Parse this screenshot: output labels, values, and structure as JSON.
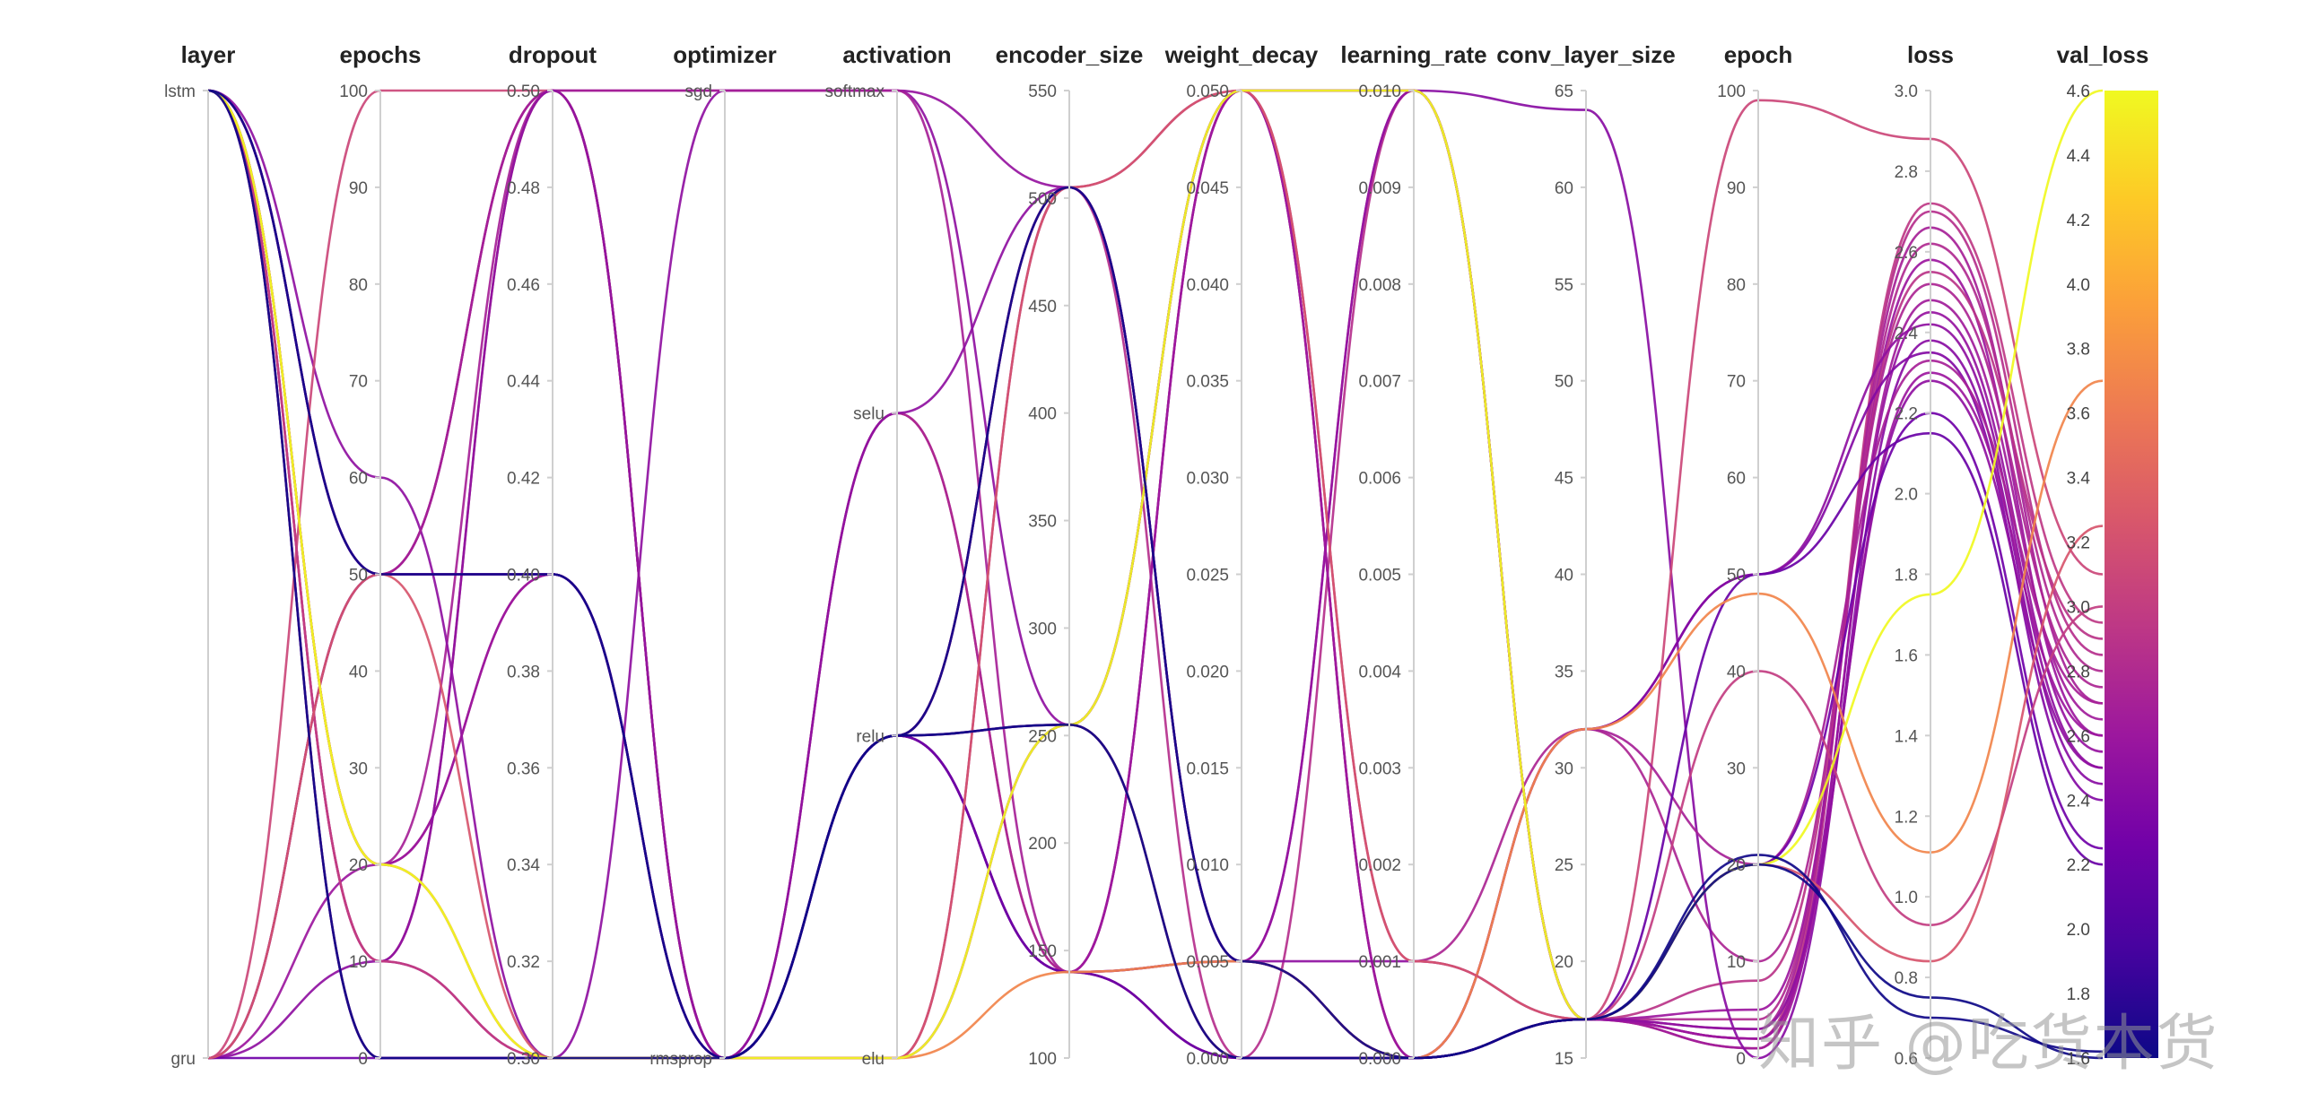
{
  "chart_data": {
    "type": "parallel_coordinates",
    "axes": [
      {
        "name": "layer",
        "kind": "categorical",
        "categories": [
          "lstm",
          "gru"
        ]
      },
      {
        "name": "epochs",
        "kind": "numeric",
        "range": [
          0,
          100
        ],
        "ticks": [
          0,
          10,
          20,
          30,
          40,
          50,
          60,
          70,
          80,
          90,
          100
        ]
      },
      {
        "name": "dropout",
        "kind": "numeric",
        "range": [
          0.3,
          0.5
        ],
        "ticks": [
          "0.30",
          "0.32",
          "0.34",
          "0.36",
          "0.38",
          "0.40",
          "0.42",
          "0.44",
          "0.46",
          "0.48",
          "0.50"
        ]
      },
      {
        "name": "optimizer",
        "kind": "categorical",
        "categories": [
          "sgd",
          "rmsprop"
        ]
      },
      {
        "name": "activation",
        "kind": "categorical",
        "categories": [
          "softmax",
          "selu",
          "relu",
          "elu"
        ]
      },
      {
        "name": "encoder_size",
        "kind": "numeric",
        "range": [
          100,
          550
        ],
        "ticks": [
          100,
          150,
          200,
          250,
          300,
          350,
          400,
          450,
          500,
          550
        ]
      },
      {
        "name": "weight_decay",
        "kind": "numeric",
        "range": [
          0,
          0.05
        ],
        "ticks": [
          "0.000",
          "0.005",
          "0.010",
          "0.015",
          "0.020",
          "0.025",
          "0.030",
          "0.035",
          "0.040",
          "0.045",
          "0.050"
        ]
      },
      {
        "name": "learning_rate",
        "kind": "numeric",
        "range": [
          0,
          0.01
        ],
        "ticks": [
          "0.000",
          "0.001",
          "0.002",
          "0.003",
          "0.004",
          "0.005",
          "0.006",
          "0.007",
          "0.008",
          "0.009",
          "0.010"
        ]
      },
      {
        "name": "conv_layer_size",
        "kind": "numeric",
        "range": [
          15,
          65
        ],
        "ticks": [
          15,
          20,
          25,
          30,
          35,
          40,
          45,
          50,
          55,
          60,
          65
        ]
      },
      {
        "name": "epoch",
        "kind": "numeric",
        "range": [
          0,
          100
        ],
        "ticks": [
          0,
          10,
          20,
          30,
          40,
          50,
          60,
          70,
          80,
          90,
          100
        ]
      },
      {
        "name": "loss",
        "kind": "numeric",
        "range": [
          0.6,
          3.0
        ],
        "ticks": [
          "0.6",
          "0.8",
          "1.0",
          "1.2",
          "1.4",
          "1.6",
          "1.8",
          "2.0",
          "2.2",
          "2.4",
          "2.6",
          "2.8",
          "3.0"
        ]
      },
      {
        "name": "val_loss",
        "kind": "numeric",
        "range": [
          1.6,
          4.6
        ],
        "ticks": [
          "1.6",
          "1.8",
          "2.0",
          "2.2",
          "2.4",
          "2.6",
          "2.8",
          "3.0",
          "3.2",
          "3.4",
          "3.6",
          "3.8",
          "4.0",
          "4.2",
          "4.4",
          "4.6"
        ]
      }
    ],
    "colorscale": {
      "variable": "val_loss",
      "stops": [
        "#0d0887",
        "#46039f",
        "#7201a8",
        "#9c179e",
        "#bd3786",
        "#d8576b",
        "#ed7953",
        "#fb9f3a",
        "#fdca26",
        "#f0f921"
      ]
    },
    "runs": [
      {
        "values": [
          "lstm",
          50,
          0.5,
          "rmsprop",
          "relu",
          505,
          0.005,
          0.0,
          17,
          2,
          2.72,
          2.95
        ]
      },
      {
        "values": [
          "lstm",
          50,
          0.4,
          "rmsprop",
          "relu",
          505,
          0.0,
          0.01,
          17,
          1,
          2.7,
          2.85
        ]
      },
      {
        "values": [
          "lstm",
          20,
          0.5,
          "rmsprop",
          "relu",
          505,
          0.05,
          0.0,
          17,
          3,
          2.66,
          2.7
        ]
      },
      {
        "values": [
          "lstm",
          20,
          0.4,
          "rmsprop",
          "relu",
          140,
          0.05,
          0.0,
          17,
          4,
          2.62,
          2.8
        ]
      },
      {
        "values": [
          "lstm",
          10,
          0.3,
          "rmsprop",
          "relu",
          140,
          0.005,
          0.01,
          17,
          5,
          2.58,
          2.6
        ]
      },
      {
        "values": [
          "lstm",
          10,
          0.5,
          "rmsprop",
          "selu",
          140,
          0.0,
          0.0,
          17,
          8,
          2.55,
          2.9
        ]
      },
      {
        "values": [
          "lstm",
          0,
          0.3,
          "rmsprop",
          "selu",
          140,
          0.05,
          0.001,
          32,
          10,
          2.52,
          2.75
        ]
      },
      {
        "values": [
          "lstm",
          0,
          0.3,
          "rmsprop",
          "elu",
          505,
          0.005,
          0.0,
          17,
          1,
          2.48,
          2.65
        ]
      },
      {
        "values": [
          "lstm",
          50,
          0.5,
          "sgd",
          "softmax",
          505,
          0.005,
          0.01,
          17,
          2,
          2.45,
          2.55
        ]
      },
      {
        "values": [
          "lstm",
          60,
          0.3,
          "sgd",
          "softmax",
          255,
          0.0,
          0.0,
          32,
          50,
          2.42,
          2.5
        ]
      },
      {
        "values": [
          "lstm",
          20,
          0.3,
          "rmsprop",
          "elu",
          255,
          0.05,
          0.01,
          64,
          0,
          2.38,
          2.45
        ]
      },
      {
        "values": [
          "lstm",
          50,
          0.4,
          "rmsprop",
          "relu",
          140,
          0.005,
          0.0,
          32,
          50,
          2.35,
          2.4
        ]
      },
      {
        "values": [
          "gru",
          100,
          0.5,
          "rmsprop",
          "relu",
          255,
          0.0,
          0.0,
          17,
          99,
          2.88,
          3.1
        ]
      },
      {
        "values": [
          "gru",
          50,
          0.5,
          "sgd",
          "softmax",
          140,
          0.0,
          0.0,
          32,
          20,
          2.33,
          2.7
        ]
      },
      {
        "values": [
          "gru",
          20,
          0.4,
          "rmsprop",
          "relu",
          140,
          0.05,
          0.0,
          17,
          2,
          2.3,
          2.6
        ]
      },
      {
        "values": [
          "gru",
          10,
          0.5,
          "rmsprop",
          "selu",
          505,
          0.005,
          0.001,
          17,
          3,
          2.28,
          2.5
        ]
      },
      {
        "values": [
          "gru",
          0,
          0.3,
          "rmsprop",
          "relu",
          255,
          0.05,
          0.01,
          17,
          20,
          2.2,
          2.25
        ]
      },
      {
        "values": [
          "gru",
          50,
          0.4,
          "rmsprop",
          "relu",
          140,
          0.0,
          0.0,
          17,
          50,
          2.15,
          2.2
        ]
      },
      {
        "values": [
          "lstm",
          10,
          0.3,
          "rmsprop",
          "elu",
          255,
          0.05,
          0.01,
          17,
          40,
          0.93,
          3.0
        ]
      },
      {
        "values": [
          "lstm",
          20,
          0.3,
          "rmsprop",
          "elu",
          140,
          0.005,
          0.0,
          32,
          48,
          1.11,
          3.7
        ]
      },
      {
        "values": [
          "gru",
          50,
          0.3,
          "rmsprop",
          "elu",
          505,
          0.05,
          0.001,
          17,
          20,
          0.84,
          3.25
        ]
      },
      {
        "values": [
          "lstm",
          20,
          0.3,
          "rmsprop",
          "elu",
          255,
          0.05,
          0.01,
          17,
          20,
          1.75,
          4.6
        ]
      },
      {
        "values": [
          "lstm",
          0,
          0.3,
          "rmsprop",
          "relu",
          255,
          0.0,
          0.0,
          17,
          20,
          0.75,
          1.6
        ]
      },
      {
        "values": [
          "lstm",
          50,
          0.4,
          "rmsprop",
          "relu",
          505,
          0.005,
          0.0,
          17,
          21,
          0.7,
          1.62
        ]
      }
    ]
  },
  "watermark": "知乎 @吃货本货"
}
